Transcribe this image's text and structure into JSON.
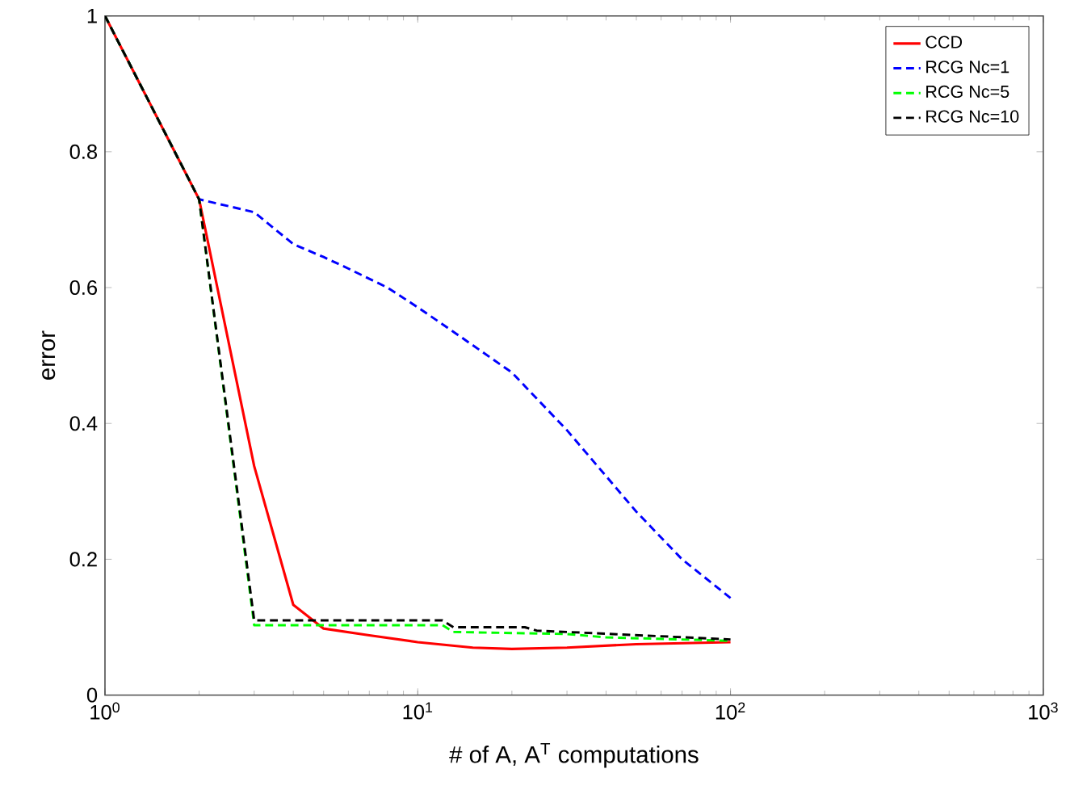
{
  "chart_data": {
    "type": "line",
    "xlabel": "# of A, A$^{T}$ computations",
    "ylabel": "error",
    "log": "x",
    "xlim": [
      1,
      1000
    ],
    "ylim": [
      0,
      1
    ],
    "xticks": [
      {
        "value": 1,
        "label": "10$^{0}$"
      },
      {
        "value": 10,
        "label": "10$^{1}$"
      },
      {
        "value": 100,
        "label": "10$^{2}$"
      },
      {
        "value": 1000,
        "label": "10$^{3}$"
      }
    ],
    "yticks": [
      0,
      0.2,
      0.4,
      0.6,
      0.8,
      1
    ],
    "legend": "top right",
    "grid": false,
    "series": [
      {
        "name": "CCD",
        "color": "#ff0000",
        "line_style": "solid",
        "x": [
          1,
          2,
          3,
          4,
          5,
          7,
          10,
          15,
          20,
          30,
          50,
          100
        ],
        "values": [
          1,
          0.73,
          0.337,
          0.133,
          0.098,
          0.088,
          0.078,
          0.07,
          0.068,
          0.07,
          0.075,
          0.078
        ]
      },
      {
        "name": "RCG Nc=1",
        "color": "#0000ff",
        "line_style": "dashed",
        "x": [
          1,
          2,
          3,
          4,
          5,
          6,
          8,
          10,
          13,
          20,
          30,
          50,
          70,
          100
        ],
        "values": [
          1,
          0.73,
          0.711,
          0.664,
          0.645,
          0.628,
          0.6,
          0.571,
          0.535,
          0.475,
          0.39,
          0.27,
          0.2,
          0.143
        ]
      },
      {
        "name": "RCG Nc=5",
        "color": "#00ff00",
        "line_style": "dashed",
        "x": [
          1,
          2,
          3,
          12,
          13,
          30,
          40,
          100
        ],
        "values": [
          1,
          0.73,
          0.103,
          0.103,
          0.093,
          0.09,
          0.085,
          0.08
        ]
      },
      {
        "name": "RCG Nc=10",
        "color": "#000000",
        "line_style": "dashed",
        "x": [
          1,
          2,
          3,
          12,
          13,
          22,
          24,
          100
        ],
        "values": [
          1,
          0.73,
          0.11,
          0.11,
          0.1,
          0.1,
          0.095,
          0.082
        ]
      }
    ]
  }
}
